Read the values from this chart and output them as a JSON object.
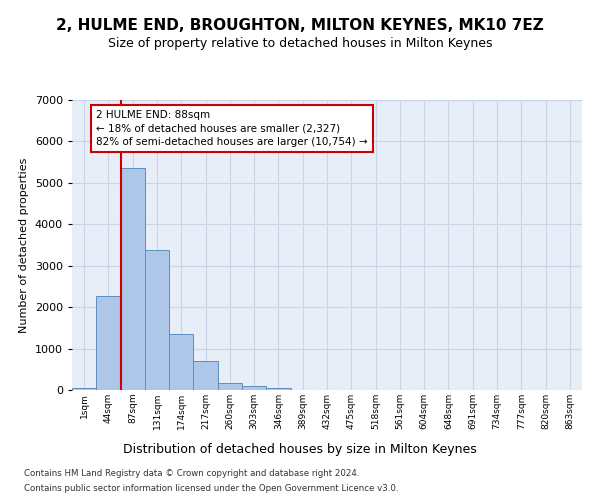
{
  "title": "2, HULME END, BROUGHTON, MILTON KEYNES, MK10 7EZ",
  "subtitle": "Size of property relative to detached houses in Milton Keynes",
  "xlabel": "Distribution of detached houses by size in Milton Keynes",
  "ylabel": "Number of detached properties",
  "footnote1": "Contains HM Land Registry data © Crown copyright and database right 2024.",
  "footnote2": "Contains public sector information licensed under the Open Government Licence v3.0.",
  "bin_labels": [
    "1sqm",
    "44sqm",
    "87sqm",
    "131sqm",
    "174sqm",
    "217sqm",
    "260sqm",
    "303sqm",
    "346sqm",
    "389sqm",
    "432sqm",
    "475sqm",
    "518sqm",
    "561sqm",
    "604sqm",
    "648sqm",
    "691sqm",
    "734sqm",
    "777sqm",
    "820sqm",
    "863sqm"
  ],
  "bar_values": [
    50,
    2280,
    5350,
    3380,
    1350,
    700,
    180,
    100,
    50,
    0,
    0,
    0,
    0,
    0,
    0,
    0,
    0,
    0,
    0,
    0,
    0
  ],
  "bar_color": "#aec6e8",
  "bar_edge_color": "#5a8fc0",
  "grid_color": "#c8d4e8",
  "bg_color": "#e8eef8",
  "vline_color": "#cc0000",
  "annotation_line1": "2 HULME END: 88sqm",
  "annotation_line2": "← 18% of detached houses are smaller (2,327)",
  "annotation_line3": "82% of semi-detached houses are larger (10,754) →",
  "ylim": [
    0,
    7000
  ],
  "yticks": [
    0,
    1000,
    2000,
    3000,
    4000,
    5000,
    6000,
    7000
  ]
}
